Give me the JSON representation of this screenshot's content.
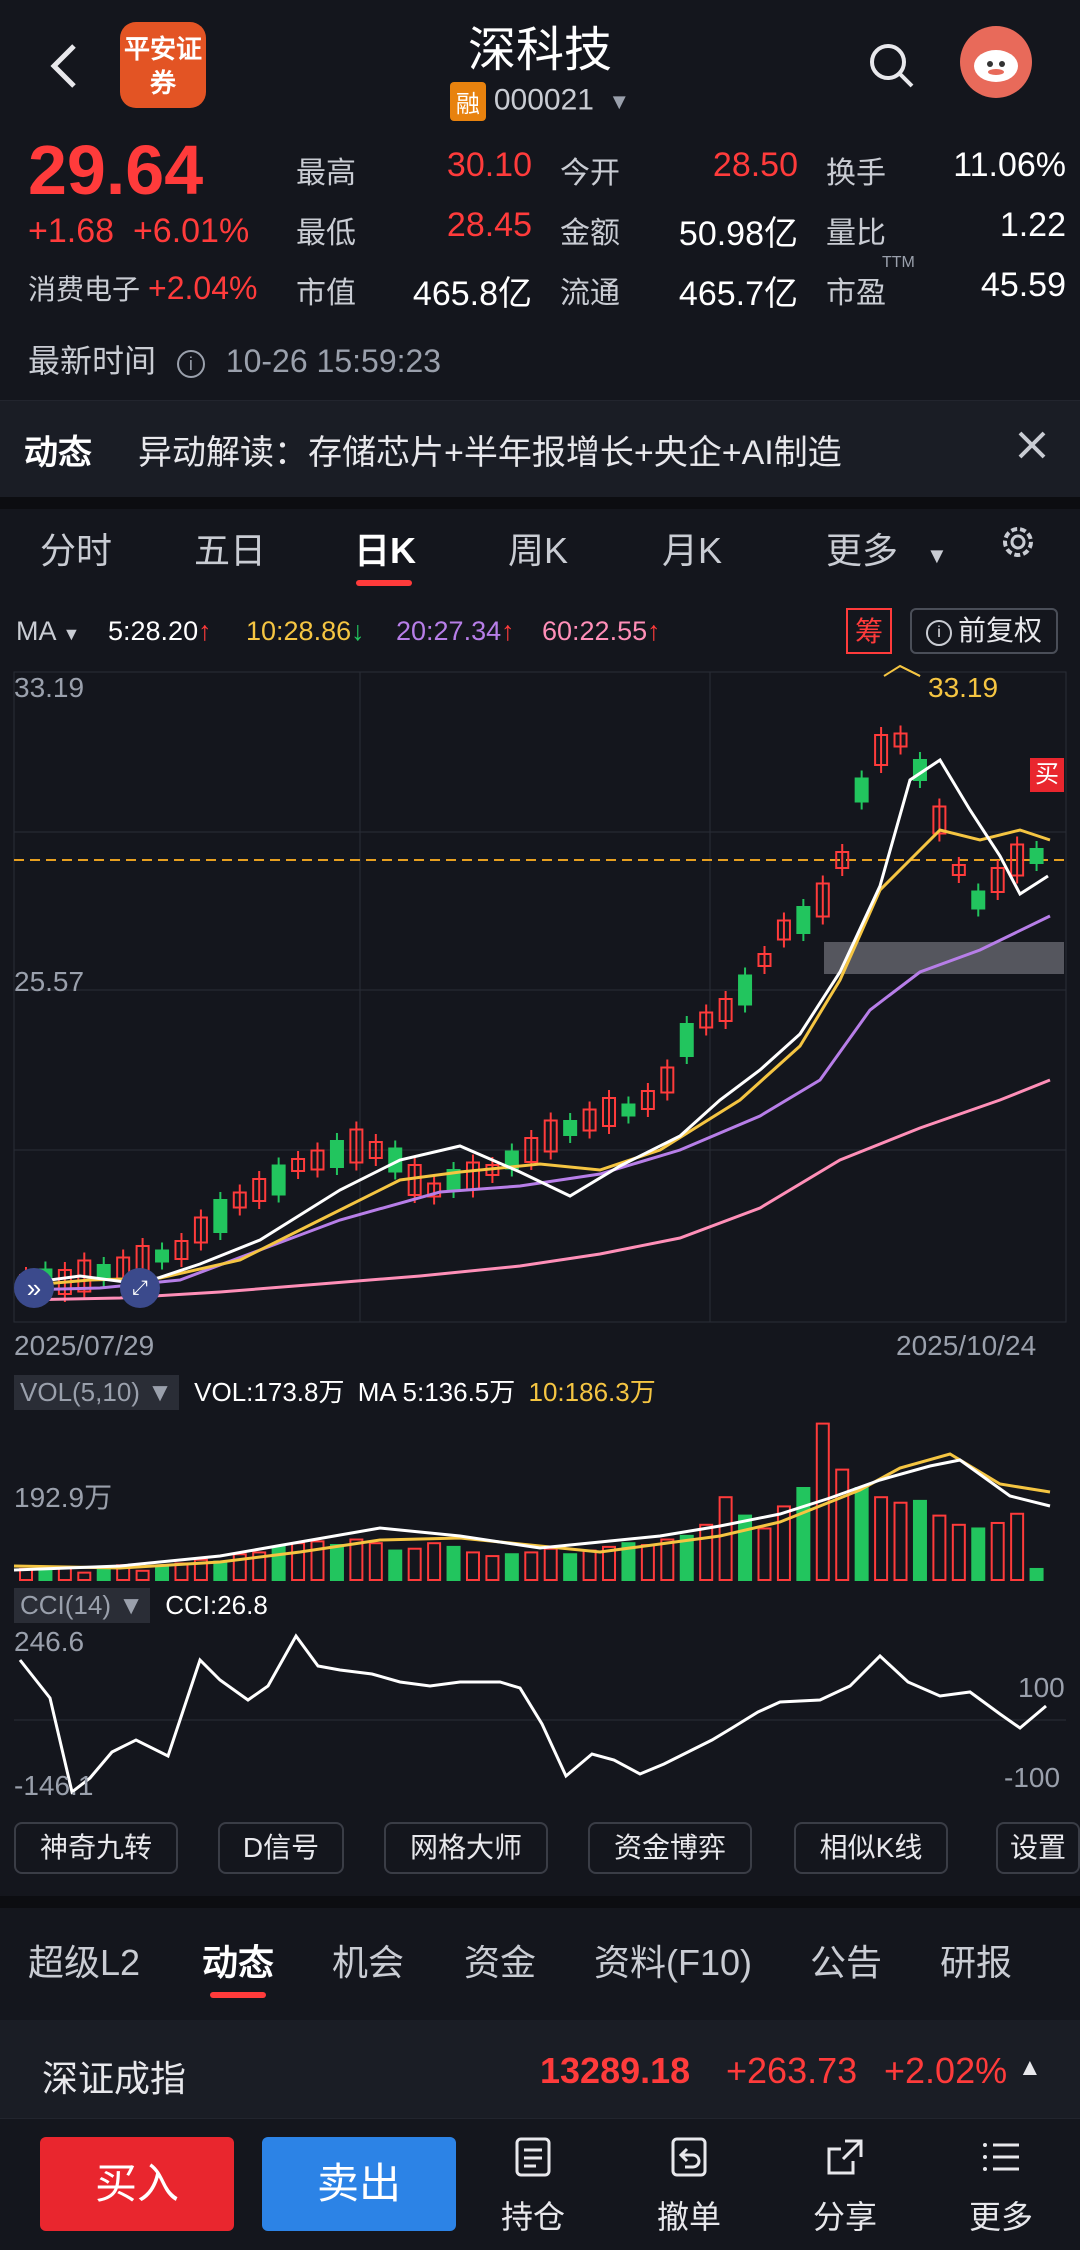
{
  "header": {
    "title": "深科技",
    "broker_logo": "平安证券",
    "rong_badge": "融",
    "code": "000021",
    "icons": [
      "back-arrow-icon",
      "search-icon",
      "avatar"
    ]
  },
  "quote": {
    "price": "29.64",
    "change": "+1.68",
    "change_pct": "+6.01%",
    "sector_name": "消费电子",
    "sector_pct": "+2.04%",
    "labels": {
      "high": "最高",
      "low": "最低",
      "mcap": "市值",
      "open": "今开",
      "amount": "金额",
      "float": "流通",
      "turnover": "换手",
      "vol_ratio": "量比",
      "pe": "市盈"
    },
    "values": {
      "high": "30.10",
      "low": "28.45",
      "mcap": "465.8亿",
      "open": "28.50",
      "amount": "50.98亿",
      "float": "465.7亿",
      "turnover": "11.06%",
      "vol_ratio": "1.22",
      "pe": "45.59"
    },
    "pe_suffix": "TTM",
    "latest_label": "最新时间",
    "latest_time": "10-26 15:59:23"
  },
  "news": {
    "tag": "动态",
    "text": "异动解读：存储芯片+半年报增长+央企+AI制造"
  },
  "period_tabs": [
    "分时",
    "五日",
    "日K",
    "周K",
    "月K",
    "更多"
  ],
  "active_period": "日K",
  "ma": {
    "label": "MA",
    "ma5": "5:28.20",
    "ma10": "10:28.86",
    "ma20": "20:27.34",
    "ma60": "60:22.55",
    "chou": "筹",
    "fuquan": "前复权"
  },
  "kline": {
    "y_top": "33.19",
    "y_mid": "25.57",
    "max_label": "33.19",
    "buy_marker": "买",
    "date_start": "2025/07/29",
    "date_end": "2025/10/24"
  },
  "volume": {
    "tag": "VOL(5,10)",
    "vol": "VOL:173.8万",
    "ma5": "MA 5:136.5万",
    "ma10": "10:186.3万",
    "y_label": "192.9万"
  },
  "cci": {
    "tag": "CCI(14)",
    "value": "CCI:26.8",
    "y_top": "246.6",
    "y_bottom": "-146.1",
    "level_high": "100",
    "level_low": "-100"
  },
  "tools": [
    "神奇九转",
    "D信号",
    "网格大师",
    "资金博弈",
    "相似K线",
    "设置"
  ],
  "section_tabs": [
    "超级L2",
    "动态",
    "机会",
    "资金",
    "资料(F10)",
    "公告",
    "研报"
  ],
  "active_section": "动态",
  "index": {
    "name": "深证成指",
    "value": "13289.18",
    "change": "+263.73",
    "pct": "+2.02%"
  },
  "bottom_bar": {
    "buy": "买入",
    "sell": "卖出",
    "items": [
      "持仓",
      "撤单",
      "分享",
      "更多"
    ]
  },
  "colors": {
    "up": "#ff3b3b",
    "down": "#22c55e",
    "ma5": "#ffffff",
    "ma10": "#f5c542",
    "ma20": "#b77ee8",
    "ma60": "#ff8fb8"
  }
}
